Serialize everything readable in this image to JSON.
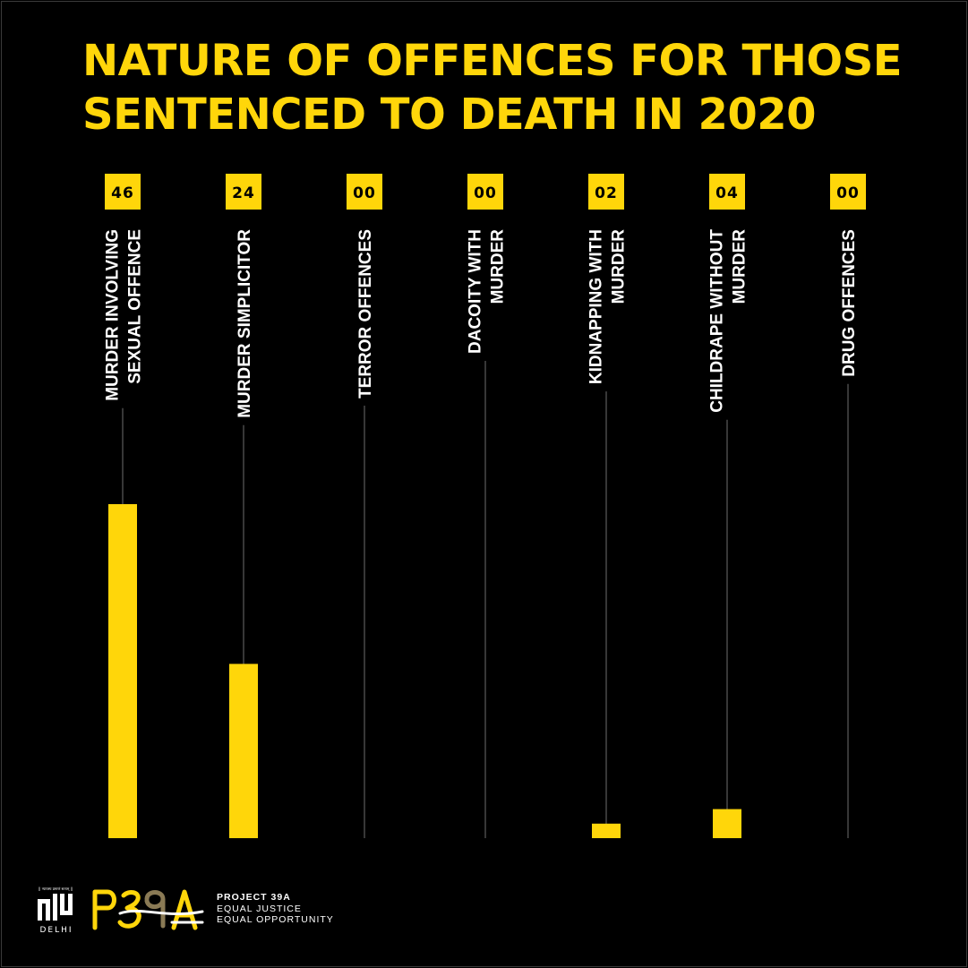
{
  "title": {
    "line1": "NATURE OF OFFENCES FOR THOSE",
    "line2": "SENTENCED TO DEATH IN 2020"
  },
  "colors": {
    "accent": "#ffd60a",
    "background": "#000000",
    "text": "#ffffff"
  },
  "chart_data": {
    "type": "bar",
    "title": "NATURE OF OFFENCES FOR THOSE SENTENCED TO DEATH IN 2020",
    "categories": [
      [
        "MURDER INVOLVING",
        "SEXUAL OFFENCE"
      ],
      [
        "MURDER SIMPLICITOR"
      ],
      [
        "TERROR OFFENCES"
      ],
      [
        "DACOITY WITH",
        "MURDER"
      ],
      [
        "KIDNAPPING WITH",
        "MURDER"
      ],
      [
        "CHILDRAPE WITHOUT",
        "MURDER"
      ],
      [
        "DRUG OFFENCES"
      ]
    ],
    "value_labels": [
      "46",
      "24",
      "00",
      "00",
      "02",
      "04",
      "00"
    ],
    "values": [
      46,
      24,
      0,
      0,
      2,
      4,
      0
    ],
    "ylim": [
      0,
      68
    ],
    "grid": false,
    "legend": "none"
  },
  "footer": {
    "nlu_logo": {
      "tagline": "|| न्यायस्य प्रमाणं सत्यम् ||",
      "mark": "nlu",
      "city": "DELHI"
    },
    "p39a_logo": "P39A",
    "org_name": "PROJECT 39A",
    "tagline1": "EQUAL JUSTICE",
    "tagline2": "EQUAL OPPORTUNITY"
  }
}
